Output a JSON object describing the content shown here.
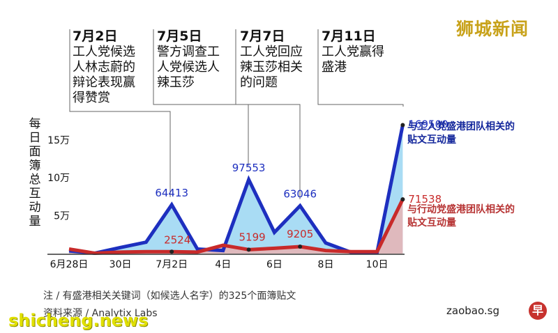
{
  "brand": "狮城新闻",
  "events": [
    {
      "date": "7月2日",
      "lines": [
        "工人党候选",
        "人林志蔚的",
        "辩论表现赢",
        "得赞赏"
      ]
    },
    {
      "date": "7月5日",
      "lines": [
        "警方调查工",
        "人党候选人",
        "辣玉莎"
      ]
    },
    {
      "date": "7月7日",
      "lines": [
        "工人党回应",
        "辣玉莎相关",
        "的问题"
      ]
    },
    {
      "date": "7月11日",
      "lines": [
        "工人党赢得",
        "盛港"
      ]
    }
  ],
  "ylabel": "每日面簿总互动量",
  "legend": {
    "blue": [
      "与工人党盛港团队相关的",
      "贴文互动量"
    ],
    "red": [
      "与行动党盛港团队相关的",
      "贴文互动量"
    ]
  },
  "footnote": {
    "note": "注 / 有盛港相关关键词（如候选人名字）的325个面簿贴文",
    "source": "资料来源 / Analytix Labs"
  },
  "site": "zaobao.sg",
  "logo_char": "早",
  "watermark": "shicheng.news",
  "colors": {
    "blue_series": "#1d2fbf",
    "blue_fill": "#a9dcf4",
    "red_series": "#c82a2a",
    "red_fill": "#e9b3b3",
    "brand": "#c8a21a"
  },
  "chart_data": {
    "type": "area",
    "x": [
      "6月28日",
      "6月29日",
      "6月30日",
      "7月1日",
      "7月2日",
      "7月3日",
      "7月4日",
      "7月5日",
      "7月6日",
      "7月7日",
      "7月8日",
      "7月9日",
      "7月10日",
      "7月11日"
    ],
    "xticks": [
      {
        "label": "6月28日",
        "index": 0
      },
      {
        "label": "30日",
        "index": 2
      },
      {
        "label": "7月2日",
        "index": 4
      },
      {
        "label": "4日",
        "index": 6
      },
      {
        "label": "6日",
        "index": 8
      },
      {
        "label": "8日",
        "index": 10
      },
      {
        "label": "10日",
        "index": 12
      }
    ],
    "yticks": [
      {
        "label": "5万",
        "value": 50000
      },
      {
        "label": "10万",
        "value": 100000
      },
      {
        "label": "15万",
        "value": 150000
      }
    ],
    "ylim": [
      0,
      175000
    ],
    "series": [
      {
        "values": [
          3500,
          500,
          8000,
          15000,
          64413,
          6000,
          4000,
          97553,
          28000,
          63046,
          14000,
          1500,
          1500,
          169500
        ],
        "labels": [
          {
            "index": 4,
            "text": "64413"
          },
          {
            "index": 7,
            "text": "97553"
          },
          {
            "index": 9,
            "text": "63046"
          },
          {
            "index": 13,
            "text": "169500"
          }
        ]
      },
      {
        "values": [
          6000,
          500,
          2000,
          2500,
          2524,
          2000,
          11000,
          5199,
          7000,
          9205,
          4000,
          2500,
          2500,
          71538
        ],
        "labels": [
          {
            "index": 4,
            "text": "2524"
          },
          {
            "index": 7,
            "text": "5199"
          },
          {
            "index": 9,
            "text": "9205"
          },
          {
            "index": 13,
            "text": "71538"
          }
        ]
      }
    ],
    "grid": false
  }
}
